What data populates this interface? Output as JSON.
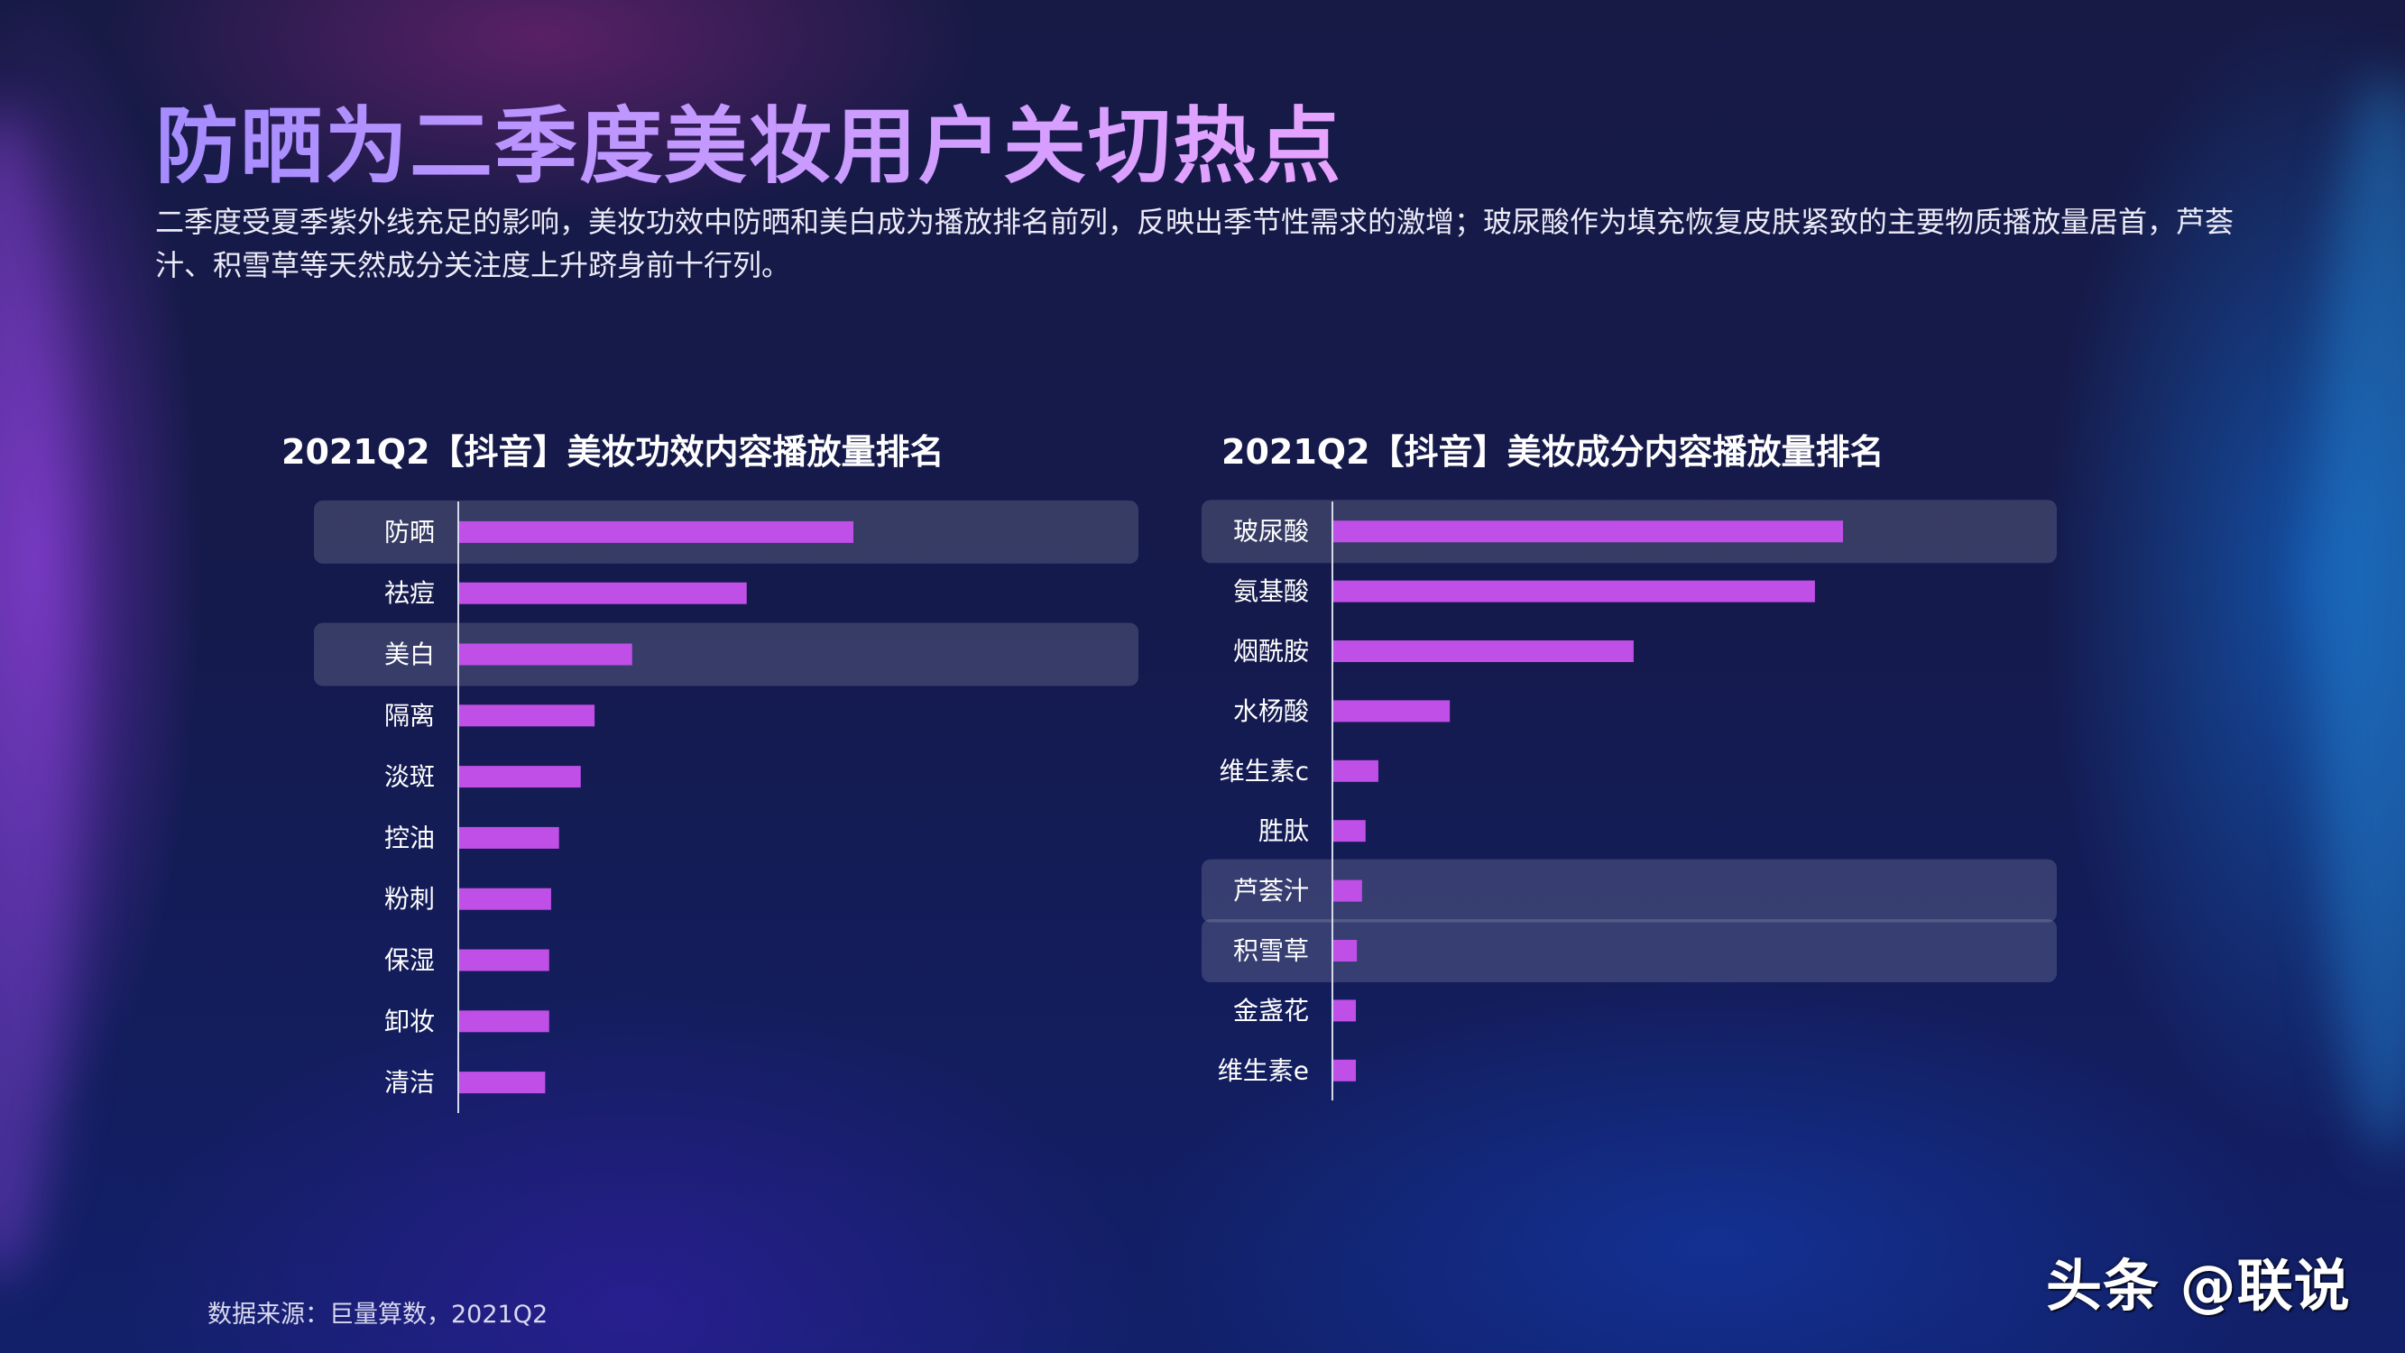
{
  "page": {
    "title": "防晒为二季度美妆用户关切热点",
    "subtitle": "二季度受夏季紫外线充足的影响，美妆功效中防晒和美白成为播放排名前列，反映出季节性需求的激增；玻尿酸作为填充恢复皮肤紧致的主要物质播放量居首，芦荟汁、积雪草等天然成分关注度上升跻身前十行列。",
    "source": "数据来源：巨量算数，2021Q2",
    "watermark": "头条 @联说"
  },
  "colors": {
    "bar": "#bf4fe6",
    "highlight_row": "#ffffff",
    "axis": "#d8d8ec",
    "label": "#ffffff"
  },
  "chart_data": [
    {
      "type": "bar",
      "orientation": "horizontal",
      "title": "2021Q2【抖音】美妆功效内容播放量排名",
      "categories": [
        "防晒",
        "祛痘",
        "美白",
        "隔离",
        "淡斑",
        "控油",
        "粉刺",
        "保湿",
        "卸妆",
        "清洁"
      ],
      "values": [
        100,
        73,
        44,
        34.5,
        31,
        25.5,
        23.5,
        23,
        23,
        22
      ],
      "highlighted": [
        "防晒",
        "美白"
      ],
      "xlim": [
        0,
        100
      ],
      "grid": false,
      "legend": false
    },
    {
      "type": "bar",
      "orientation": "horizontal",
      "title": "2021Q2【抖音】美妆成分内容播放量排名",
      "categories": [
        "玻尿酸",
        "氨基酸",
        "烟酰胺",
        "水杨酸",
        "维生素c",
        "胜肽",
        "芦荟汁",
        "积雪草",
        "金盏花",
        "维生素e"
      ],
      "values": [
        100,
        94.5,
        59,
        23,
        9,
        6.5,
        5.8,
        4.8,
        4.6,
        4.6
      ],
      "highlighted": [
        "玻尿酸",
        "芦荟汁",
        "积雪草"
      ],
      "xlim": [
        0,
        100
      ],
      "grid": false,
      "legend": false
    }
  ]
}
